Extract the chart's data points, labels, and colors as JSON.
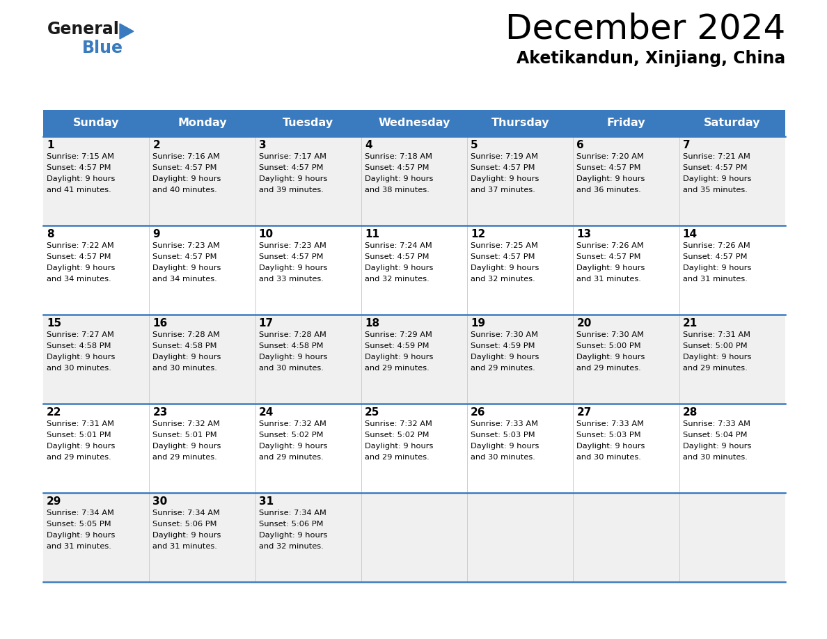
{
  "title": "December 2024",
  "subtitle": "Aketikandun, Xinjiang, China",
  "header_bg": "#3a7bbf",
  "header_text": "#ffffff",
  "row_bg_odd": "#f0f0f0",
  "row_bg_even": "#ffffff",
  "border_color": "#3a7bbf",
  "days_of_week": [
    "Sunday",
    "Monday",
    "Tuesday",
    "Wednesday",
    "Thursday",
    "Friday",
    "Saturday"
  ],
  "weeks": [
    [
      {
        "day": 1,
        "sunrise": "7:15 AM",
        "sunset": "4:57 PM",
        "daylight_hours": 9,
        "daylight_minutes": 41
      },
      {
        "day": 2,
        "sunrise": "7:16 AM",
        "sunset": "4:57 PM",
        "daylight_hours": 9,
        "daylight_minutes": 40
      },
      {
        "day": 3,
        "sunrise": "7:17 AM",
        "sunset": "4:57 PM",
        "daylight_hours": 9,
        "daylight_minutes": 39
      },
      {
        "day": 4,
        "sunrise": "7:18 AM",
        "sunset": "4:57 PM",
        "daylight_hours": 9,
        "daylight_minutes": 38
      },
      {
        "day": 5,
        "sunrise": "7:19 AM",
        "sunset": "4:57 PM",
        "daylight_hours": 9,
        "daylight_minutes": 37
      },
      {
        "day": 6,
        "sunrise": "7:20 AM",
        "sunset": "4:57 PM",
        "daylight_hours": 9,
        "daylight_minutes": 36
      },
      {
        "day": 7,
        "sunrise": "7:21 AM",
        "sunset": "4:57 PM",
        "daylight_hours": 9,
        "daylight_minutes": 35
      }
    ],
    [
      {
        "day": 8,
        "sunrise": "7:22 AM",
        "sunset": "4:57 PM",
        "daylight_hours": 9,
        "daylight_minutes": 34
      },
      {
        "day": 9,
        "sunrise": "7:23 AM",
        "sunset": "4:57 PM",
        "daylight_hours": 9,
        "daylight_minutes": 34
      },
      {
        "day": 10,
        "sunrise": "7:23 AM",
        "sunset": "4:57 PM",
        "daylight_hours": 9,
        "daylight_minutes": 33
      },
      {
        "day": 11,
        "sunrise": "7:24 AM",
        "sunset": "4:57 PM",
        "daylight_hours": 9,
        "daylight_minutes": 32
      },
      {
        "day": 12,
        "sunrise": "7:25 AM",
        "sunset": "4:57 PM",
        "daylight_hours": 9,
        "daylight_minutes": 32
      },
      {
        "day": 13,
        "sunrise": "7:26 AM",
        "sunset": "4:57 PM",
        "daylight_hours": 9,
        "daylight_minutes": 31
      },
      {
        "day": 14,
        "sunrise": "7:26 AM",
        "sunset": "4:57 PM",
        "daylight_hours": 9,
        "daylight_minutes": 31
      }
    ],
    [
      {
        "day": 15,
        "sunrise": "7:27 AM",
        "sunset": "4:58 PM",
        "daylight_hours": 9,
        "daylight_minutes": 30
      },
      {
        "day": 16,
        "sunrise": "7:28 AM",
        "sunset": "4:58 PM",
        "daylight_hours": 9,
        "daylight_minutes": 30
      },
      {
        "day": 17,
        "sunrise": "7:28 AM",
        "sunset": "4:58 PM",
        "daylight_hours": 9,
        "daylight_minutes": 30
      },
      {
        "day": 18,
        "sunrise": "7:29 AM",
        "sunset": "4:59 PM",
        "daylight_hours": 9,
        "daylight_minutes": 29
      },
      {
        "day": 19,
        "sunrise": "7:30 AM",
        "sunset": "4:59 PM",
        "daylight_hours": 9,
        "daylight_minutes": 29
      },
      {
        "day": 20,
        "sunrise": "7:30 AM",
        "sunset": "5:00 PM",
        "daylight_hours": 9,
        "daylight_minutes": 29
      },
      {
        "day": 21,
        "sunrise": "7:31 AM",
        "sunset": "5:00 PM",
        "daylight_hours": 9,
        "daylight_minutes": 29
      }
    ],
    [
      {
        "day": 22,
        "sunrise": "7:31 AM",
        "sunset": "5:01 PM",
        "daylight_hours": 9,
        "daylight_minutes": 29
      },
      {
        "day": 23,
        "sunrise": "7:32 AM",
        "sunset": "5:01 PM",
        "daylight_hours": 9,
        "daylight_minutes": 29
      },
      {
        "day": 24,
        "sunrise": "7:32 AM",
        "sunset": "5:02 PM",
        "daylight_hours": 9,
        "daylight_minutes": 29
      },
      {
        "day": 25,
        "sunrise": "7:32 AM",
        "sunset": "5:02 PM",
        "daylight_hours": 9,
        "daylight_minutes": 29
      },
      {
        "day": 26,
        "sunrise": "7:33 AM",
        "sunset": "5:03 PM",
        "daylight_hours": 9,
        "daylight_minutes": 30
      },
      {
        "day": 27,
        "sunrise": "7:33 AM",
        "sunset": "5:03 PM",
        "daylight_hours": 9,
        "daylight_minutes": 30
      },
      {
        "day": 28,
        "sunrise": "7:33 AM",
        "sunset": "5:04 PM",
        "daylight_hours": 9,
        "daylight_minutes": 30
      }
    ],
    [
      {
        "day": 29,
        "sunrise": "7:34 AM",
        "sunset": "5:05 PM",
        "daylight_hours": 9,
        "daylight_minutes": 31
      },
      {
        "day": 30,
        "sunrise": "7:34 AM",
        "sunset": "5:06 PM",
        "daylight_hours": 9,
        "daylight_minutes": 31
      },
      {
        "day": 31,
        "sunrise": "7:34 AM",
        "sunset": "5:06 PM",
        "daylight_hours": 9,
        "daylight_minutes": 32
      },
      null,
      null,
      null,
      null
    ]
  ],
  "logo_general_color": "#1a1a1a",
  "logo_blue_color": "#3a7bbf",
  "logo_triangle_color": "#3a7bbf",
  "fig_width": 11.88,
  "fig_height": 9.18,
  "dpi": 100
}
